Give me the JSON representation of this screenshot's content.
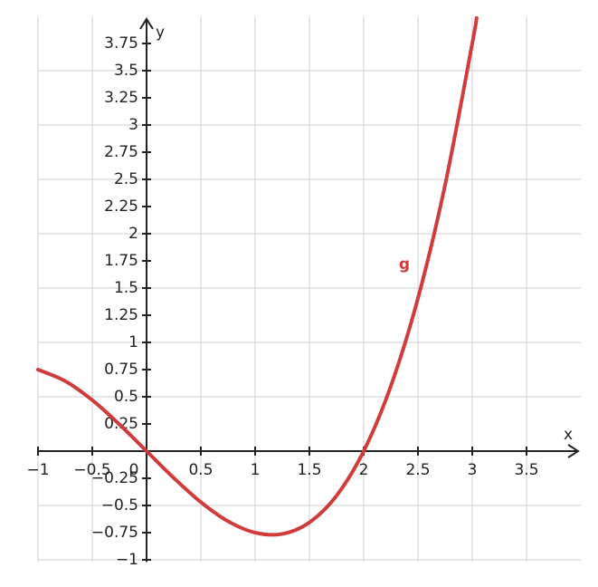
{
  "chart_data": {
    "type": "line",
    "x_label": "x",
    "y_label": "y",
    "x": [
      -1,
      -0.75,
      -0.5,
      -0.25,
      0,
      0.25,
      0.5,
      0.75,
      1,
      1.25,
      1.5,
      1.75,
      2,
      2.25,
      2.5,
      2.75,
      3,
      3.04
    ],
    "series": [
      {
        "name": "g",
        "color": "#d03c3c",
        "values": [
          0.75,
          0.645,
          0.469,
          0.246,
          0,
          -0.246,
          -0.469,
          -0.645,
          -0.75,
          -0.762,
          -0.656,
          -0.41,
          0,
          0.598,
          1.406,
          2.449,
          3.75,
          3.984
        ]
      }
    ],
    "xlim": [
      -1,
      4
    ],
    "ylim": [
      -1.02,
      4
    ],
    "xticks": [
      {
        "value": -1,
        "label": "−1"
      },
      {
        "value": -0.5,
        "label": "−0.5"
      },
      0,
      0.5,
      1,
      1.5,
      2,
      2.5,
      3,
      3.5
    ],
    "yticks": [
      {
        "value": -1,
        "label": "−1"
      },
      {
        "value": -0.75,
        "label": "−0.75"
      },
      {
        "value": -0.5,
        "label": "−0.5"
      },
      {
        "value": -0.25,
        "label": "−0.25"
      },
      0.25,
      0.5,
      0.75,
      1,
      1.25,
      1.5,
      1.75,
      2,
      2.25,
      2.5,
      2.75,
      3,
      3.25,
      3.5,
      3.75
    ],
    "grid": true
  }
}
